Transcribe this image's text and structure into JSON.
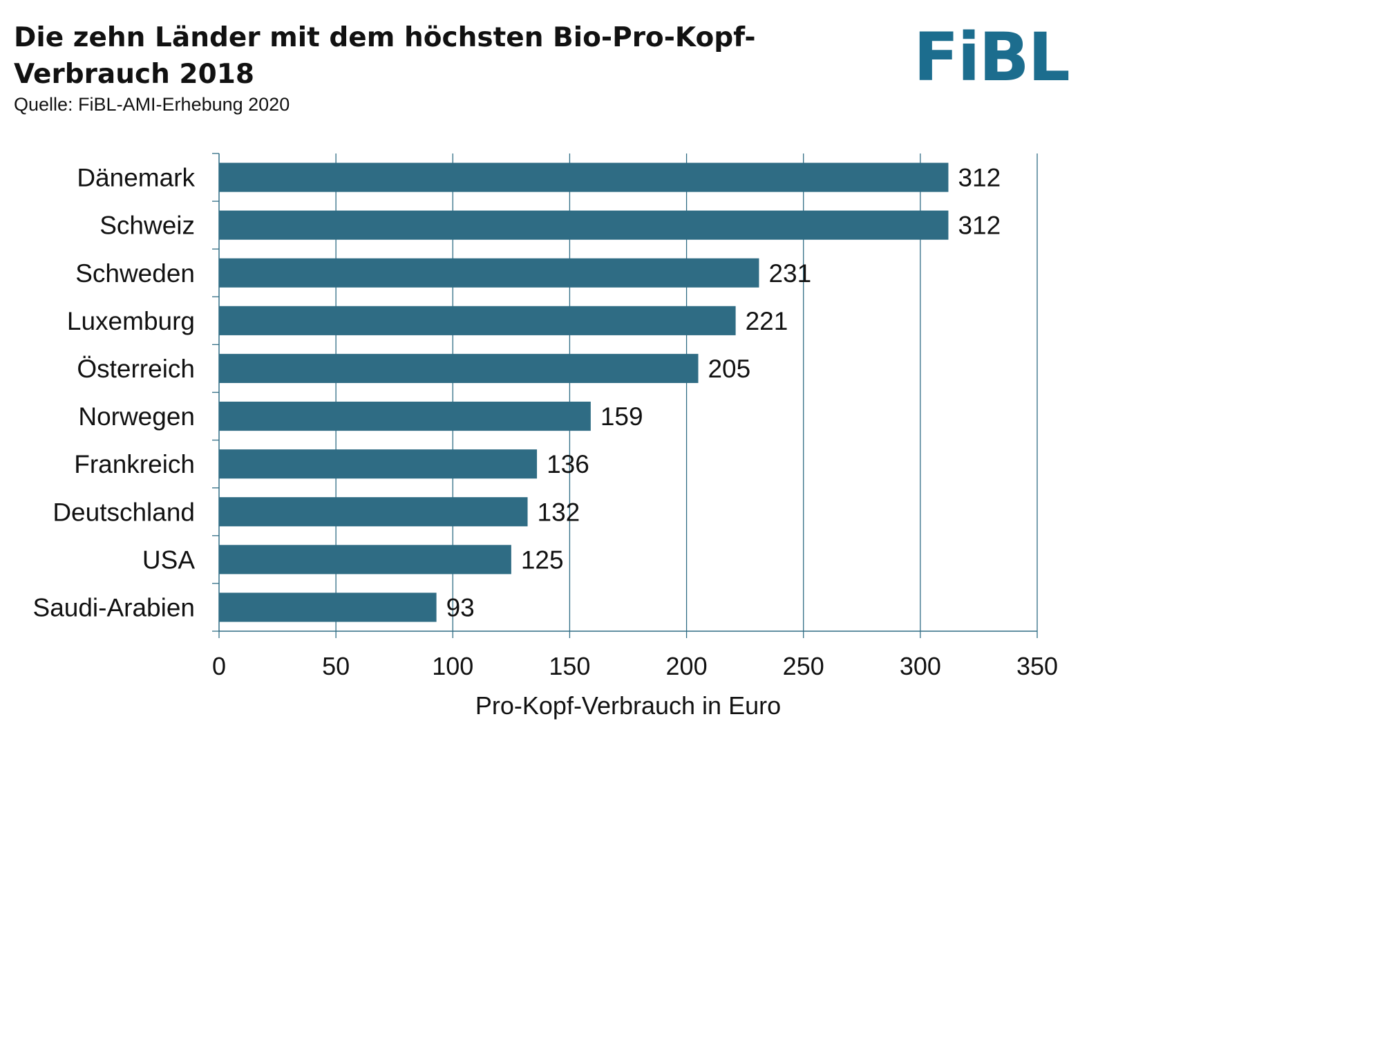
{
  "header": {
    "title": "Die zehn Länder mit dem höchsten Bio-Pro-Kopf-Verbrauch 2018",
    "source": "Quelle: FiBL-AMI-Erhebung 2020",
    "logo_text": "FiBL"
  },
  "colors": {
    "bar": "#2f6c84",
    "logo": "#1c6d8e",
    "grid": "#2f6c84",
    "text": "#111111"
  },
  "chart_data": {
    "type": "bar",
    "orientation": "horizontal",
    "title": "Die zehn Länder mit dem höchsten Bio-Pro-Kopf-Verbrauch 2018",
    "subtitle": "Quelle: FiBL-AMI-Erhebung 2020",
    "categories": [
      "Dänemark",
      "Schweiz",
      "Schweden",
      "Luxemburg",
      "Österreich",
      "Norwegen",
      "Frankreich",
      "Deutschland",
      "USA",
      "Saudi-Arabien"
    ],
    "values": [
      312,
      312,
      231,
      221,
      205,
      159,
      136,
      132,
      125,
      93
    ],
    "xlabel": "Pro-Kopf-Verbrauch in Euro",
    "ylabel": "",
    "xlim": [
      0,
      350
    ],
    "xticks": [
      0,
      50,
      100,
      150,
      200,
      250,
      300,
      350
    ],
    "grid": true,
    "legend": "none",
    "data_labels": true
  }
}
